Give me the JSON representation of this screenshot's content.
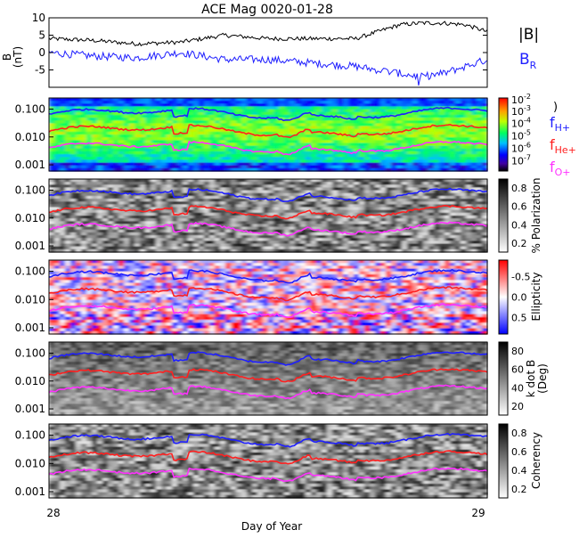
{
  "figure": {
    "title": "ACE Mag 0020-01-28",
    "xlabel": "Day of Year",
    "x_ticks": [
      "28",
      "29"
    ],
    "colors": {
      "black": "#000000",
      "blue": "#1f1fff",
      "red": "#ff2020",
      "magenta": "#ff30ff"
    }
  },
  "chart_data": [
    {
      "type": "line",
      "panel": "magnetic-field",
      "ylabel": "B (nT)",
      "ylim": [
        -10,
        10
      ],
      "yticks": [
        "10",
        "5",
        "0",
        "-5"
      ],
      "x_range": [
        28,
        29
      ],
      "series": [
        {
          "name": "|B|",
          "x": [
            28.0,
            28.1,
            28.2,
            28.3,
            28.4,
            28.5,
            28.6,
            28.7,
            28.75,
            28.8,
            28.85,
            28.9,
            28.95,
            29.0
          ],
          "values": [
            4,
            3.5,
            2.5,
            3,
            5,
            4,
            4,
            4,
            6,
            8,
            8.5,
            8.5,
            8,
            6
          ]
        },
        {
          "name": "B_R",
          "x": [
            28.0,
            28.1,
            28.2,
            28.3,
            28.4,
            28.5,
            28.6,
            28.7,
            28.75,
            28.8,
            28.85,
            28.9,
            28.95,
            29.0
          ],
          "values": [
            0,
            -1,
            -1.5,
            0,
            -2,
            -2,
            -3,
            -4,
            -5,
            -6,
            -7,
            -6,
            -4,
            -2
          ]
        }
      ],
      "legend": [
        {
          "label": "|B|",
          "color": "#000000"
        },
        {
          "label": "B",
          "sub": "R",
          "color": "#1f1fff"
        }
      ]
    },
    {
      "type": "heatmap",
      "panel": "power-spectrum",
      "y_log": true,
      "yticks": [
        "0.100",
        "0.010",
        "0.001"
      ],
      "colorbar": {
        "ticks": [
          "10",
          "10",
          "10",
          "10",
          "10"
        ],
        "top_label": "10",
        "top_sup": "-2"
      },
      "overlay_series": [
        {
          "name": "f_H+",
          "level": 0.065
        },
        {
          "name": "f_He+",
          "level": 0.016
        },
        {
          "name": "f_O+",
          "level": 0.004
        }
      ],
      "legend": [
        {
          "label": "f",
          "sub": "H+",
          "color": "#1f1fff"
        },
        {
          "label": "f",
          "sub": "He+",
          "color": "#ff2020"
        },
        {
          "label": "f",
          "sub": "O+",
          "color": "#ff30ff"
        }
      ]
    },
    {
      "type": "heatmap",
      "panel": "polarization",
      "y_log": true,
      "yticks": [
        "0.100",
        "0.010",
        "0.001"
      ],
      "colorbar": {
        "label": "% Polarization",
        "ticks": [
          "0.8",
          "0.6",
          "0.4",
          "0.2"
        ]
      }
    },
    {
      "type": "heatmap",
      "panel": "ellipticity",
      "y_log": true,
      "yticks": [
        "0.100",
        "0.010",
        "0.001"
      ],
      "colorbar": {
        "label": "Ellipticity",
        "ticks": [
          "0.5",
          "0.0",
          "-0.5"
        ]
      }
    },
    {
      "type": "heatmap",
      "panel": "k-dot-b",
      "y_log": true,
      "yticks": [
        "0.100",
        "0.010",
        "0.001"
      ],
      "colorbar": {
        "label": "k dot B",
        "label2": "(Deg)",
        "ticks": [
          "80",
          "60",
          "40",
          "20"
        ]
      }
    },
    {
      "type": "heatmap",
      "panel": "coherency",
      "y_log": true,
      "yticks": [
        "0.100",
        "0.010",
        "0.001"
      ],
      "colorbar": {
        "label": "Coherency",
        "ticks": [
          "0.8",
          "0.6",
          "0.4",
          "0.2"
        ]
      }
    }
  ]
}
